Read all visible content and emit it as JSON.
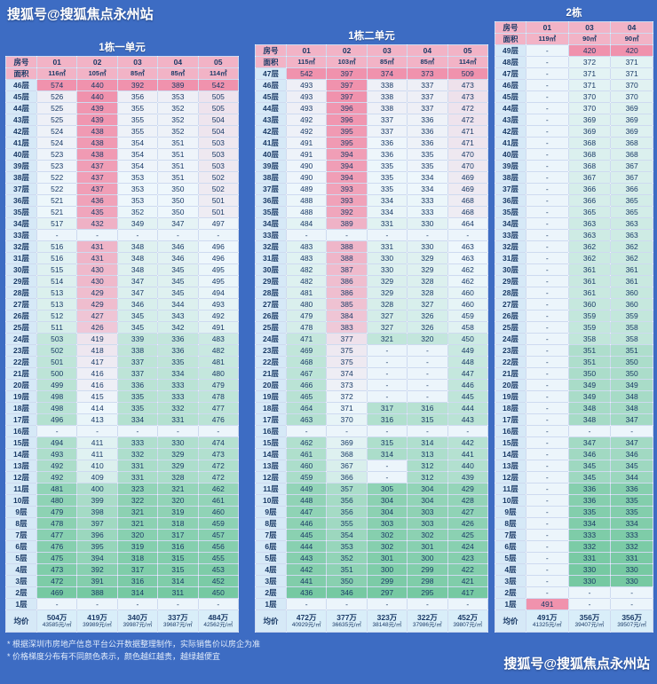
{
  "watermarks": {
    "top": "搜狐号@搜狐焦点永州站",
    "bottom": "搜狐号@搜狐焦点永州站"
  },
  "footnotes": [
    "* 根据深圳市房地产信息平台公开数据整理制作，实际销售价以房企为准",
    "* 价格梯度分布有不同颜色表示，颜色越红越贵，越绿越便宜"
  ],
  "labels": {
    "room": "房号",
    "area": "面积",
    "avg": "均价"
  },
  "colors": {
    "background": "#3d6cc3",
    "header_pink": "#f2b3c6",
    "floor_col": "#d6e9f7",
    "avg_row": "#d9eef9",
    "dash_cell": "#ecf5fb",
    "gradient_low": "#76c9a2",
    "gradient_mid": "#eef7fc",
    "gradient_high": "#f092ad",
    "text_dark": "#1a3a66",
    "title_text": "#ffffff"
  },
  "chart_data": [
    {
      "type": "table",
      "title": "1栋一单元",
      "columns": [
        "01",
        "02",
        "03",
        "04",
        "05"
      ],
      "areas": [
        "116㎡",
        "105㎡",
        "85㎡",
        "85㎡",
        "114㎡"
      ],
      "floors": [
        "46层",
        "45层",
        "44层",
        "43层",
        "42层",
        "41层",
        "40层",
        "39层",
        "38层",
        "37层",
        "36层",
        "35层",
        "34层",
        "33层",
        "32层",
        "31层",
        "30层",
        "29层",
        "28层",
        "27层",
        "26层",
        "25层",
        "24层",
        "23层",
        "22层",
        "21层",
        "20层",
        "19层",
        "18层",
        "17层",
        "16层",
        "15层",
        "14层",
        "13层",
        "12层",
        "11层",
        "10层",
        "9层",
        "8层",
        "7层",
        "6层",
        "5层",
        "4层",
        "3层",
        "2层",
        "1层"
      ],
      "values": [
        [
          574,
          440,
          392,
          389,
          542
        ],
        [
          526,
          440,
          356,
          353,
          505
        ],
        [
          525,
          439,
          355,
          352,
          505
        ],
        [
          525,
          439,
          355,
          352,
          504
        ],
        [
          524,
          438,
          355,
          352,
          504
        ],
        [
          524,
          438,
          354,
          351,
          503
        ],
        [
          523,
          438,
          354,
          351,
          503
        ],
        [
          523,
          437,
          354,
          351,
          503
        ],
        [
          522,
          437,
          353,
          351,
          502
        ],
        [
          522,
          437,
          353,
          350,
          502
        ],
        [
          521,
          436,
          353,
          350,
          501
        ],
        [
          521,
          435,
          352,
          350,
          501
        ],
        [
          517,
          432,
          349,
          347,
          497
        ],
        [
          null,
          null,
          null,
          null,
          null
        ],
        [
          516,
          431,
          348,
          346,
          496
        ],
        [
          516,
          431,
          348,
          346,
          496
        ],
        [
          515,
          430,
          348,
          345,
          495
        ],
        [
          514,
          430,
          347,
          345,
          495
        ],
        [
          513,
          429,
          347,
          345,
          494
        ],
        [
          513,
          429,
          346,
          344,
          493
        ],
        [
          512,
          427,
          345,
          343,
          492
        ],
        [
          511,
          426,
          345,
          342,
          491
        ],
        [
          503,
          419,
          339,
          336,
          483
        ],
        [
          502,
          418,
          338,
          336,
          482
        ],
        [
          501,
          417,
          337,
          335,
          481
        ],
        [
          500,
          416,
          337,
          334,
          480
        ],
        [
          499,
          416,
          336,
          333,
          479
        ],
        [
          498,
          415,
          335,
          333,
          478
        ],
        [
          498,
          414,
          335,
          332,
          477
        ],
        [
          496,
          413,
          334,
          331,
          476
        ],
        [
          null,
          null,
          null,
          null,
          null
        ],
        [
          494,
          411,
          333,
          330,
          474
        ],
        [
          493,
          411,
          332,
          329,
          473
        ],
        [
          492,
          410,
          331,
          329,
          472
        ],
        [
          492,
          409,
          331,
          328,
          472
        ],
        [
          481,
          400,
          323,
          321,
          462
        ],
        [
          480,
          399,
          322,
          320,
          461
        ],
        [
          479,
          398,
          321,
          319,
          460
        ],
        [
          478,
          397,
          321,
          318,
          459
        ],
        [
          477,
          396,
          320,
          317,
          457
        ],
        [
          476,
          395,
          319,
          316,
          456
        ],
        [
          475,
          394,
          318,
          315,
          455
        ],
        [
          473,
          392,
          317,
          315,
          453
        ],
        [
          472,
          391,
          316,
          314,
          452
        ],
        [
          469,
          388,
          314,
          311,
          450
        ],
        [
          null,
          null,
          null,
          null,
          null
        ]
      ],
      "averages": [
        [
          "504万",
          "43585元/㎡"
        ],
        [
          "419万",
          "39989元/㎡"
        ],
        [
          "340万",
          "39987元/㎡"
        ],
        [
          "337万",
          "39687元/㎡"
        ],
        [
          "484万",
          "42562元/㎡"
        ]
      ]
    },
    {
      "type": "table",
      "title": "1栋二单元",
      "columns": [
        "01",
        "02",
        "03",
        "04",
        "05"
      ],
      "areas": [
        "115㎡",
        "103㎡",
        "85㎡",
        "85㎡",
        "114㎡"
      ],
      "floors": [
        "47层",
        "46层",
        "45层",
        "44层",
        "43层",
        "42层",
        "41层",
        "40层",
        "39层",
        "38层",
        "37层",
        "36层",
        "35层",
        "34层",
        "33层",
        "32层",
        "31层",
        "30层",
        "29层",
        "28层",
        "27层",
        "26层",
        "25层",
        "24层",
        "23层",
        "22层",
        "21层",
        "20层",
        "19层",
        "18层",
        "17层",
        "16层",
        "15层",
        "14层",
        "13层",
        "12层",
        "11层",
        "10层",
        "9层",
        "8层",
        "7层",
        "6层",
        "5层",
        "4层",
        "3层",
        "2层",
        "1层"
      ],
      "values": [
        [
          542,
          397,
          374,
          373,
          509
        ],
        [
          493,
          397,
          338,
          337,
          473
        ],
        [
          493,
          397,
          338,
          337,
          473
        ],
        [
          493,
          396,
          338,
          337,
          472
        ],
        [
          492,
          396,
          337,
          336,
          472
        ],
        [
          492,
          395,
          337,
          336,
          471
        ],
        [
          491,
          395,
          336,
          336,
          471
        ],
        [
          491,
          394,
          336,
          335,
          470
        ],
        [
          490,
          394,
          335,
          335,
          470
        ],
        [
          490,
          394,
          335,
          334,
          469
        ],
        [
          489,
          393,
          335,
          334,
          469
        ],
        [
          488,
          393,
          334,
          333,
          468
        ],
        [
          488,
          392,
          334,
          333,
          468
        ],
        [
          484,
          389,
          331,
          330,
          464
        ],
        [
          null,
          null,
          null,
          null,
          null
        ],
        [
          483,
          388,
          331,
          330,
          463
        ],
        [
          483,
          388,
          330,
          329,
          463
        ],
        [
          482,
          387,
          330,
          329,
          462
        ],
        [
          482,
          386,
          329,
          328,
          462
        ],
        [
          481,
          386,
          329,
          328,
          460
        ],
        [
          480,
          385,
          328,
          327,
          460
        ],
        [
          479,
          384,
          327,
          326,
          459
        ],
        [
          478,
          383,
          327,
          326,
          458
        ],
        [
          471,
          377,
          321,
          320,
          450
        ],
        [
          469,
          375,
          null,
          null,
          449
        ],
        [
          468,
          375,
          null,
          null,
          448
        ],
        [
          467,
          374,
          null,
          null,
          447
        ],
        [
          466,
          373,
          null,
          null,
          446
        ],
        [
          465,
          372,
          null,
          null,
          445
        ],
        [
          464,
          371,
          317,
          316,
          444
        ],
        [
          463,
          370,
          316,
          315,
          443
        ],
        [
          null,
          null,
          null,
          null,
          null
        ],
        [
          462,
          369,
          315,
          314,
          442
        ],
        [
          461,
          368,
          314,
          313,
          441
        ],
        [
          460,
          367,
          null,
          312,
          440
        ],
        [
          459,
          366,
          null,
          312,
          439
        ],
        [
          449,
          357,
          305,
          304,
          429
        ],
        [
          448,
          356,
          304,
          304,
          428
        ],
        [
          447,
          356,
          304,
          303,
          427
        ],
        [
          446,
          355,
          303,
          303,
          426
        ],
        [
          445,
          354,
          302,
          302,
          425
        ],
        [
          444,
          353,
          302,
          301,
          424
        ],
        [
          443,
          352,
          301,
          300,
          423
        ],
        [
          442,
          351,
          300,
          299,
          422
        ],
        [
          441,
          350,
          299,
          298,
          421
        ],
        [
          436,
          346,
          297,
          295,
          417
        ],
        [
          null,
          null,
          null,
          null,
          null
        ]
      ],
      "averages": [
        [
          "472万",
          "40929元/㎡"
        ],
        [
          "377万",
          "36635元/㎡"
        ],
        [
          "323万",
          "38148元/㎡"
        ],
        [
          "322万",
          "37986元/㎡"
        ],
        [
          "452万",
          "39807元/㎡"
        ]
      ]
    },
    {
      "type": "table",
      "title": "2栋",
      "columns": [
        "01",
        "03",
        "04"
      ],
      "areas": [
        "119㎡",
        "90㎡",
        "90㎡"
      ],
      "floors": [
        "49层",
        "48层",
        "47层",
        "46层",
        "45层",
        "44层",
        "43层",
        "42层",
        "41层",
        "40层",
        "39层",
        "38层",
        "37层",
        "36层",
        "35层",
        "34层",
        "33层",
        "32层",
        "31层",
        "30层",
        "29层",
        "28层",
        "27层",
        "26层",
        "25层",
        "24层",
        "23层",
        "22层",
        "21层",
        "20层",
        "19层",
        "18层",
        "17层",
        "16层",
        "15层",
        "14层",
        "13层",
        "12层",
        "11层",
        "10层",
        "9层",
        "8层",
        "7层",
        "6层",
        "5层",
        "4层",
        "3层",
        "2层",
        "1层"
      ],
      "values": [
        [
          null,
          420,
          420
        ],
        [
          null,
          372,
          371
        ],
        [
          null,
          371,
          371
        ],
        [
          null,
          371,
          370
        ],
        [
          null,
          370,
          370
        ],
        [
          null,
          370,
          369
        ],
        [
          null,
          369,
          369
        ],
        [
          null,
          369,
          369
        ],
        [
          null,
          368,
          368
        ],
        [
          null,
          368,
          368
        ],
        [
          null,
          368,
          367
        ],
        [
          null,
          367,
          367
        ],
        [
          null,
          366,
          366
        ],
        [
          null,
          366,
          365
        ],
        [
          null,
          365,
          365
        ],
        [
          null,
          363,
          363
        ],
        [
          null,
          363,
          363
        ],
        [
          null,
          362,
          362
        ],
        [
          null,
          362,
          362
        ],
        [
          null,
          361,
          361
        ],
        [
          null,
          361,
          361
        ],
        [
          null,
          361,
          360
        ],
        [
          null,
          360,
          360
        ],
        [
          null,
          359,
          359
        ],
        [
          null,
          359,
          358
        ],
        [
          null,
          358,
          358
        ],
        [
          null,
          351,
          351
        ],
        [
          null,
          351,
          350
        ],
        [
          null,
          350,
          350
        ],
        [
          null,
          349,
          349
        ],
        [
          null,
          349,
          348
        ],
        [
          null,
          348,
          348
        ],
        [
          null,
          348,
          347
        ],
        [
          null,
          null,
          null
        ],
        [
          null,
          347,
          347
        ],
        [
          null,
          346,
          346
        ],
        [
          null,
          345,
          345
        ],
        [
          null,
          345,
          344
        ],
        [
          null,
          336,
          336
        ],
        [
          null,
          336,
          335
        ],
        [
          null,
          335,
          335
        ],
        [
          null,
          334,
          334
        ],
        [
          null,
          333,
          333
        ],
        [
          null,
          332,
          332
        ],
        [
          null,
          331,
          331
        ],
        [
          null,
          330,
          330
        ],
        [
          null,
          330,
          330
        ],
        [
          null,
          null,
          null
        ],
        [
          491,
          null,
          null
        ]
      ],
      "averages": [
        [
          "491万",
          "41325元/㎡"
        ],
        [
          "356万",
          "39407元/㎡"
        ],
        [
          "356万",
          "39507元/㎡"
        ]
      ]
    }
  ]
}
